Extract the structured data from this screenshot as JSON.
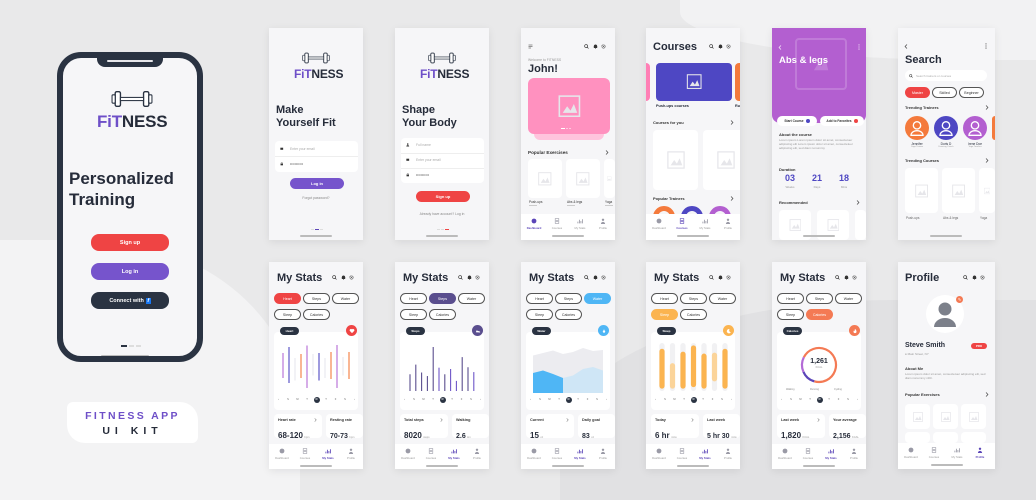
{
  "brand": {
    "logo_fit": "FiT",
    "logo_ness": "NESS",
    "accent": "#6e4fc8",
    "red": "#ef4444",
    "dark": "#2a3342"
  },
  "intro": {
    "headline": "Personalized Training",
    "signup": "Sign up",
    "login": "Log in",
    "connect": "Connect with",
    "facebook_glyph": "f"
  },
  "badge": {
    "line1": "FITNESS APP",
    "line2": "UI KIT"
  },
  "login": {
    "headline": "Make Yourself Fit",
    "email_placeholder": "Enter your email",
    "password": "•••••••••••",
    "button": "Log in",
    "forgot": "Forgot password?"
  },
  "signup": {
    "headline": "Shape Your Body",
    "name_placeholder": "Full name",
    "email_placeholder": "Enter your email",
    "password": "•••••••••••",
    "button": "Sign up",
    "have_account": "Already have account? Log in"
  },
  "nav": [
    "Dashboard",
    "Courses",
    "My Stats",
    "Profile"
  ],
  "dashboard": {
    "welcome": "Welcome to FITNESS",
    "name": "John!",
    "section": "Popular Exercises",
    "exercises": [
      "Push-ups",
      "Abs & legs",
      "Yoga"
    ],
    "hero_color": "#ff8fbf"
  },
  "courses": {
    "title": "Courses",
    "featured": "Push-ups courses",
    "featured_next": "Ru",
    "for_you": "Courses for you",
    "trainers": "Popular Trainers",
    "featured_color": "#4e47c3"
  },
  "course_detail": {
    "title": "Abs & legs",
    "header_color": "#b35fd0",
    "start": "Start Course",
    "favorite": "Add to Favorites",
    "about": "About the course",
    "about_text": "Lorem ipsum Lorem ipsum dolor sit amet, consectetuer adipiscing elit Lorem ipsum dolor sit amet, consectetuer adipiscing elit, sed diam nonummy",
    "duration": "Duration",
    "durations": [
      {
        "value": "03",
        "unit": "Weeks"
      },
      {
        "value": "21",
        "unit": "Days"
      },
      {
        "value": "18",
        "unit": "Mins"
      }
    ],
    "recommended": "Recommended"
  },
  "search": {
    "title": "Search",
    "placeholder": "Search trainers or courses",
    "chips": [
      "Master",
      "Skilled",
      "Beginner"
    ],
    "trending_trainers": "Trending Trainers",
    "trainers": [
      {
        "name": "Jennifer",
        "role": "Yoga Trainer",
        "color": "#f47a3c"
      },
      {
        "name": "Doris D",
        "role": "Dancing Coach",
        "color": "#4e47c3"
      },
      {
        "name": "Irene Doe",
        "role": "Yoga Teacher",
        "color": "#b35fd0"
      }
    ],
    "trending_courses": "Trending Courses",
    "courses": [
      "Push-ups",
      "Abs & legs",
      "Yoga"
    ]
  },
  "stats": {
    "title": "My Stats",
    "chips": [
      "Heart",
      "Steps",
      "Water",
      "Sleep",
      "Calories"
    ],
    "days": [
      "S",
      "M",
      "T",
      "W",
      "T",
      "F",
      "S"
    ],
    "active_day": 3,
    "screens": [
      {
        "active_chip": 0,
        "color": "#ef4444",
        "icon": "heart-icon",
        "label": "Heart",
        "cards": [
          {
            "label": "Heart rate",
            "value": "68-120",
            "unit": "bpm"
          },
          {
            "label": "Resting rate",
            "value": "70-73",
            "unit": "bpm"
          }
        ],
        "chart": {
          "type": "range",
          "ranges": [
            [
              30,
              80,
              "#b36ad6"
            ],
            [
              20,
              92,
              "#4e47c3"
            ],
            [
              25,
              70,
              "#e8e8ee"
            ],
            [
              30,
              78,
              "#f47a3c"
            ],
            [
              10,
              95,
              "#b36ad6"
            ],
            [
              35,
              78,
              "#e8e8ee"
            ],
            [
              25,
              80,
              "#4e47c3"
            ],
            [
              30,
              70,
              "#e8e8ee"
            ],
            [
              28,
              82,
              "#f47a3c"
            ],
            [
              10,
              96,
              "#b36ad6"
            ],
            [
              35,
              72,
              "#e8e8ee"
            ],
            [
              28,
              82,
              "#f47a3c"
            ]
          ]
        }
      },
      {
        "active_chip": 1,
        "color": "#5a4e8e",
        "icon": "shoe-icon",
        "label": "Steps",
        "cards": [
          {
            "label": "Total steps",
            "value": "8020",
            "unit": "steps"
          },
          {
            "label": "Walking",
            "value": "2.6",
            "unit": "km"
          }
        ],
        "chart": {
          "type": "bars",
          "values": [
            38,
            60,
            42,
            34,
            100,
            53,
            38,
            50,
            23,
            77,
            54,
            43
          ],
          "colors": [
            "#5a4e8e",
            "#5a4e8e",
            "#5a4e8e",
            "#5a4e8e",
            "#5a4e8e",
            "#6e55c8",
            "#5a4e8e",
            "#6e55c8",
            "#6e55c8",
            "#5a4e8e",
            "#5a4e8e",
            "#6e55c8"
          ]
        }
      },
      {
        "active_chip": 2,
        "color": "#4fb6f5",
        "icon": "drop-icon",
        "label": "Water",
        "cards": [
          {
            "label": "Current",
            "value": "15",
            "unit": "oz"
          },
          {
            "label": "Daily goal",
            "value": "83",
            "unit": "oz"
          }
        ],
        "chart": {
          "type": "area",
          "back": [
            75,
            80,
            85,
            78,
            82,
            90,
            84,
            86
          ],
          "front": [
            40,
            45,
            38,
            30,
            35,
            48,
            52,
            45
          ]
        }
      },
      {
        "active_chip": 3,
        "color": "#fbb450",
        "icon": "moon-icon",
        "label": "Sleep",
        "cards": [
          {
            "label": "Today",
            "value": "6 hr",
            "unit": "mins"
          },
          {
            "label": "Last week",
            "value": "5 hr 30",
            "unit": "mins"
          }
        ],
        "chart": {
          "type": "sleep",
          "ranges": [
            [
              5,
              88
            ],
            [
              5,
              58
            ],
            [
              5,
              82
            ],
            [
              8,
              95
            ],
            [
              5,
              78
            ],
            [
              20,
              80
            ],
            [
              5,
              88
            ]
          ]
        }
      },
      {
        "active_chip": 4,
        "color": "#f47a54",
        "icon": "flame-icon",
        "label": "Calories",
        "cards": [
          {
            "label": "Last week",
            "value": "1,820",
            "unit": "KCAL"
          },
          {
            "label": "Your average",
            "value": "2,156",
            "unit": "KCAL"
          }
        ],
        "chart": {
          "type": "donut",
          "value": "1,261",
          "unit": "KCAL",
          "legend": [
            "Walking",
            "Running",
            "Cycling"
          ],
          "segments": [
            [
              0.72,
              "#f47a54"
            ],
            [
              0.14,
              "#5b45b8"
            ],
            [
              0.14,
              "#b36ad6"
            ]
          ]
        }
      }
    ]
  },
  "profile": {
    "title": "Profile",
    "name": "Steve Smith",
    "badge": "PRO",
    "location": "Main Street, NY",
    "about": "About Me",
    "about_text": "Lorem ipsum dolor sit amet, consectetuer adipiscing elit, sed diam nonummy nibh.",
    "section": "Popular Exercises"
  }
}
